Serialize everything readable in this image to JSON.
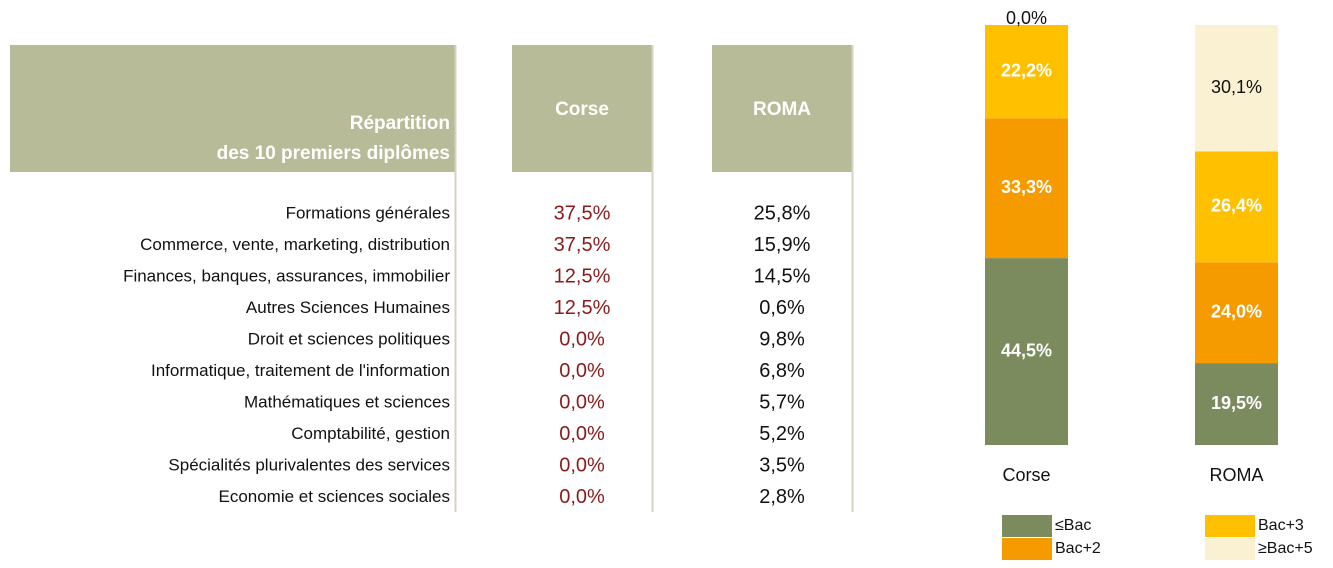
{
  "table": {
    "header": {
      "title_lines": [
        "Répartition",
        "des 10 premiers diplômes"
      ],
      "columns": [
        "Corse",
        "ROMA"
      ]
    },
    "rows": [
      [
        "Formations générales",
        "37,5%",
        "25,8%"
      ],
      [
        "Commerce, vente, marketing, distribution",
        "37,5%",
        "15,9%"
      ],
      [
        "Finances, banques, assurances, immobilier",
        "12,5%",
        "14,5%"
      ],
      [
        "Autres Sciences Humaines",
        "12,5%",
        "0,6%"
      ],
      [
        "Droit et sciences politiques",
        "0,0%",
        "9,8%"
      ],
      [
        "Informatique, traitement de l'information",
        "0,0%",
        "6,8%"
      ],
      [
        "Mathématiques et sciences",
        "0,0%",
        "5,7%"
      ],
      [
        "Comptabilité, gestion",
        "0,0%",
        "5,2%"
      ],
      [
        "Spécialités plurivalentes des services",
        "0,0%",
        "3,5%"
      ],
      [
        "Economie et sciences sociales",
        "0,0%",
        "2,8%"
      ]
    ]
  },
  "chart_data": {
    "type": "bar",
    "stacked": true,
    "categories": [
      "Corse",
      "ROMA"
    ],
    "series": [
      {
        "name": "≤Bac",
        "color": "#7b8b5e",
        "values": [
          44.5,
          19.5
        ],
        "value_labels": [
          "44,5%",
          "19,5%"
        ]
      },
      {
        "name": "Bac+2",
        "color": "#f59b00",
        "values": [
          33.3,
          24.0
        ],
        "value_labels": [
          "33,3%",
          "24,0%"
        ]
      },
      {
        "name": "Bac+3",
        "color": "#ffc000",
        "values": [
          22.2,
          26.4
        ],
        "value_labels": [
          "22,2%",
          "26,4%"
        ]
      },
      {
        "name": "≥Bac+5",
        "color": "#faf0d2",
        "values": [
          0.0,
          30.1
        ],
        "value_labels": [
          "0,0%",
          "30,1%"
        ]
      }
    ],
    "ylim": [
      0,
      100
    ]
  }
}
